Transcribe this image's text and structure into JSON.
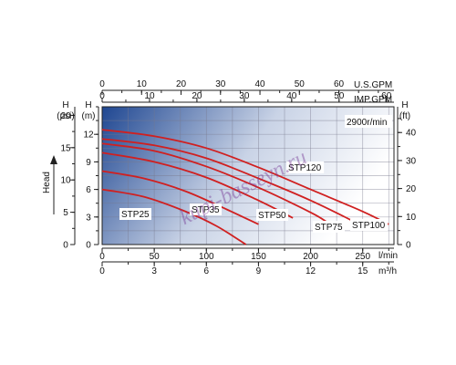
{
  "chart_data": {
    "type": "line",
    "watermark": "kupi-basseyn.ru",
    "speed_label": "2900r/min",
    "x_flow_lmin": {
      "unit": "l/min",
      "ticks": [
        0,
        50,
        100,
        150,
        200,
        250
      ],
      "range": [
        0,
        280
      ]
    },
    "x_flow_m3h": {
      "unit": "m³/h",
      "ticks": [
        0,
        3,
        6,
        9,
        12,
        15
      ],
      "range": [
        0,
        16.8
      ]
    },
    "x_top_usgpm": {
      "unit": "U.S.GPM",
      "ticks": [
        0,
        10,
        20,
        30,
        40,
        50,
        60
      ],
      "range": [
        0,
        73.97
      ]
    },
    "x_top_impgpm": {
      "unit": "IMP.GPM",
      "ticks": [
        0,
        10,
        20,
        30,
        40,
        50,
        60
      ],
      "range": [
        0,
        61.59
      ]
    },
    "y_head_m": {
      "unit_top": "H",
      "unit": "(m)",
      "ticks": [
        0,
        3,
        6,
        9,
        12
      ],
      "range": [
        0,
        15
      ]
    },
    "y_head_psi": {
      "unit_top": "H",
      "unit": "(psi)",
      "ticks": [
        0,
        5,
        10,
        15,
        20
      ],
      "range": [
        0,
        21.33
      ]
    },
    "y_head_ft": {
      "unit_top": "H",
      "unit": "(ft)",
      "ticks": [
        0,
        10,
        20,
        30,
        40
      ],
      "range": [
        0,
        49.2
      ]
    },
    "y_axis_title": "Head",
    "series": [
      {
        "name": "STP25",
        "points": [
          [
            0,
            6.0
          ],
          [
            40,
            5.2
          ],
          [
            80,
            3.6
          ],
          [
            110,
            2.0
          ],
          [
            138,
            0.0
          ]
        ]
      },
      {
        "name": "STP35",
        "points": [
          [
            0,
            8.0
          ],
          [
            40,
            7.2
          ],
          [
            80,
            5.8
          ],
          [
            120,
            3.8
          ],
          [
            150,
            2.2
          ]
        ]
      },
      {
        "name": "STP50",
        "points": [
          [
            0,
            10.0
          ],
          [
            50,
            9.0
          ],
          [
            100,
            7.3
          ],
          [
            150,
            4.8
          ],
          [
            183,
            2.9
          ]
        ]
      },
      {
        "name": "STP75",
        "points": [
          [
            0,
            11.0
          ],
          [
            50,
            10.2
          ],
          [
            100,
            8.5
          ],
          [
            150,
            6.2
          ],
          [
            200,
            3.5
          ],
          [
            215,
            2.5
          ]
        ]
      },
      {
        "name": "STP100",
        "points": [
          [
            0,
            11.5
          ],
          [
            50,
            10.8
          ],
          [
            100,
            9.4
          ],
          [
            150,
            7.2
          ],
          [
            200,
            4.8
          ],
          [
            240,
            2.6
          ]
        ]
      },
      {
        "name": "STP120",
        "points": [
          [
            0,
            12.5
          ],
          [
            50,
            11.8
          ],
          [
            100,
            10.5
          ],
          [
            150,
            8.4
          ],
          [
            200,
            6.0
          ],
          [
            250,
            3.6
          ],
          [
            275,
            2.2
          ]
        ]
      }
    ],
    "line_color": "#d02020",
    "grid": true,
    "background_gradient": [
      "#1e4691",
      "#ffffff"
    ]
  }
}
